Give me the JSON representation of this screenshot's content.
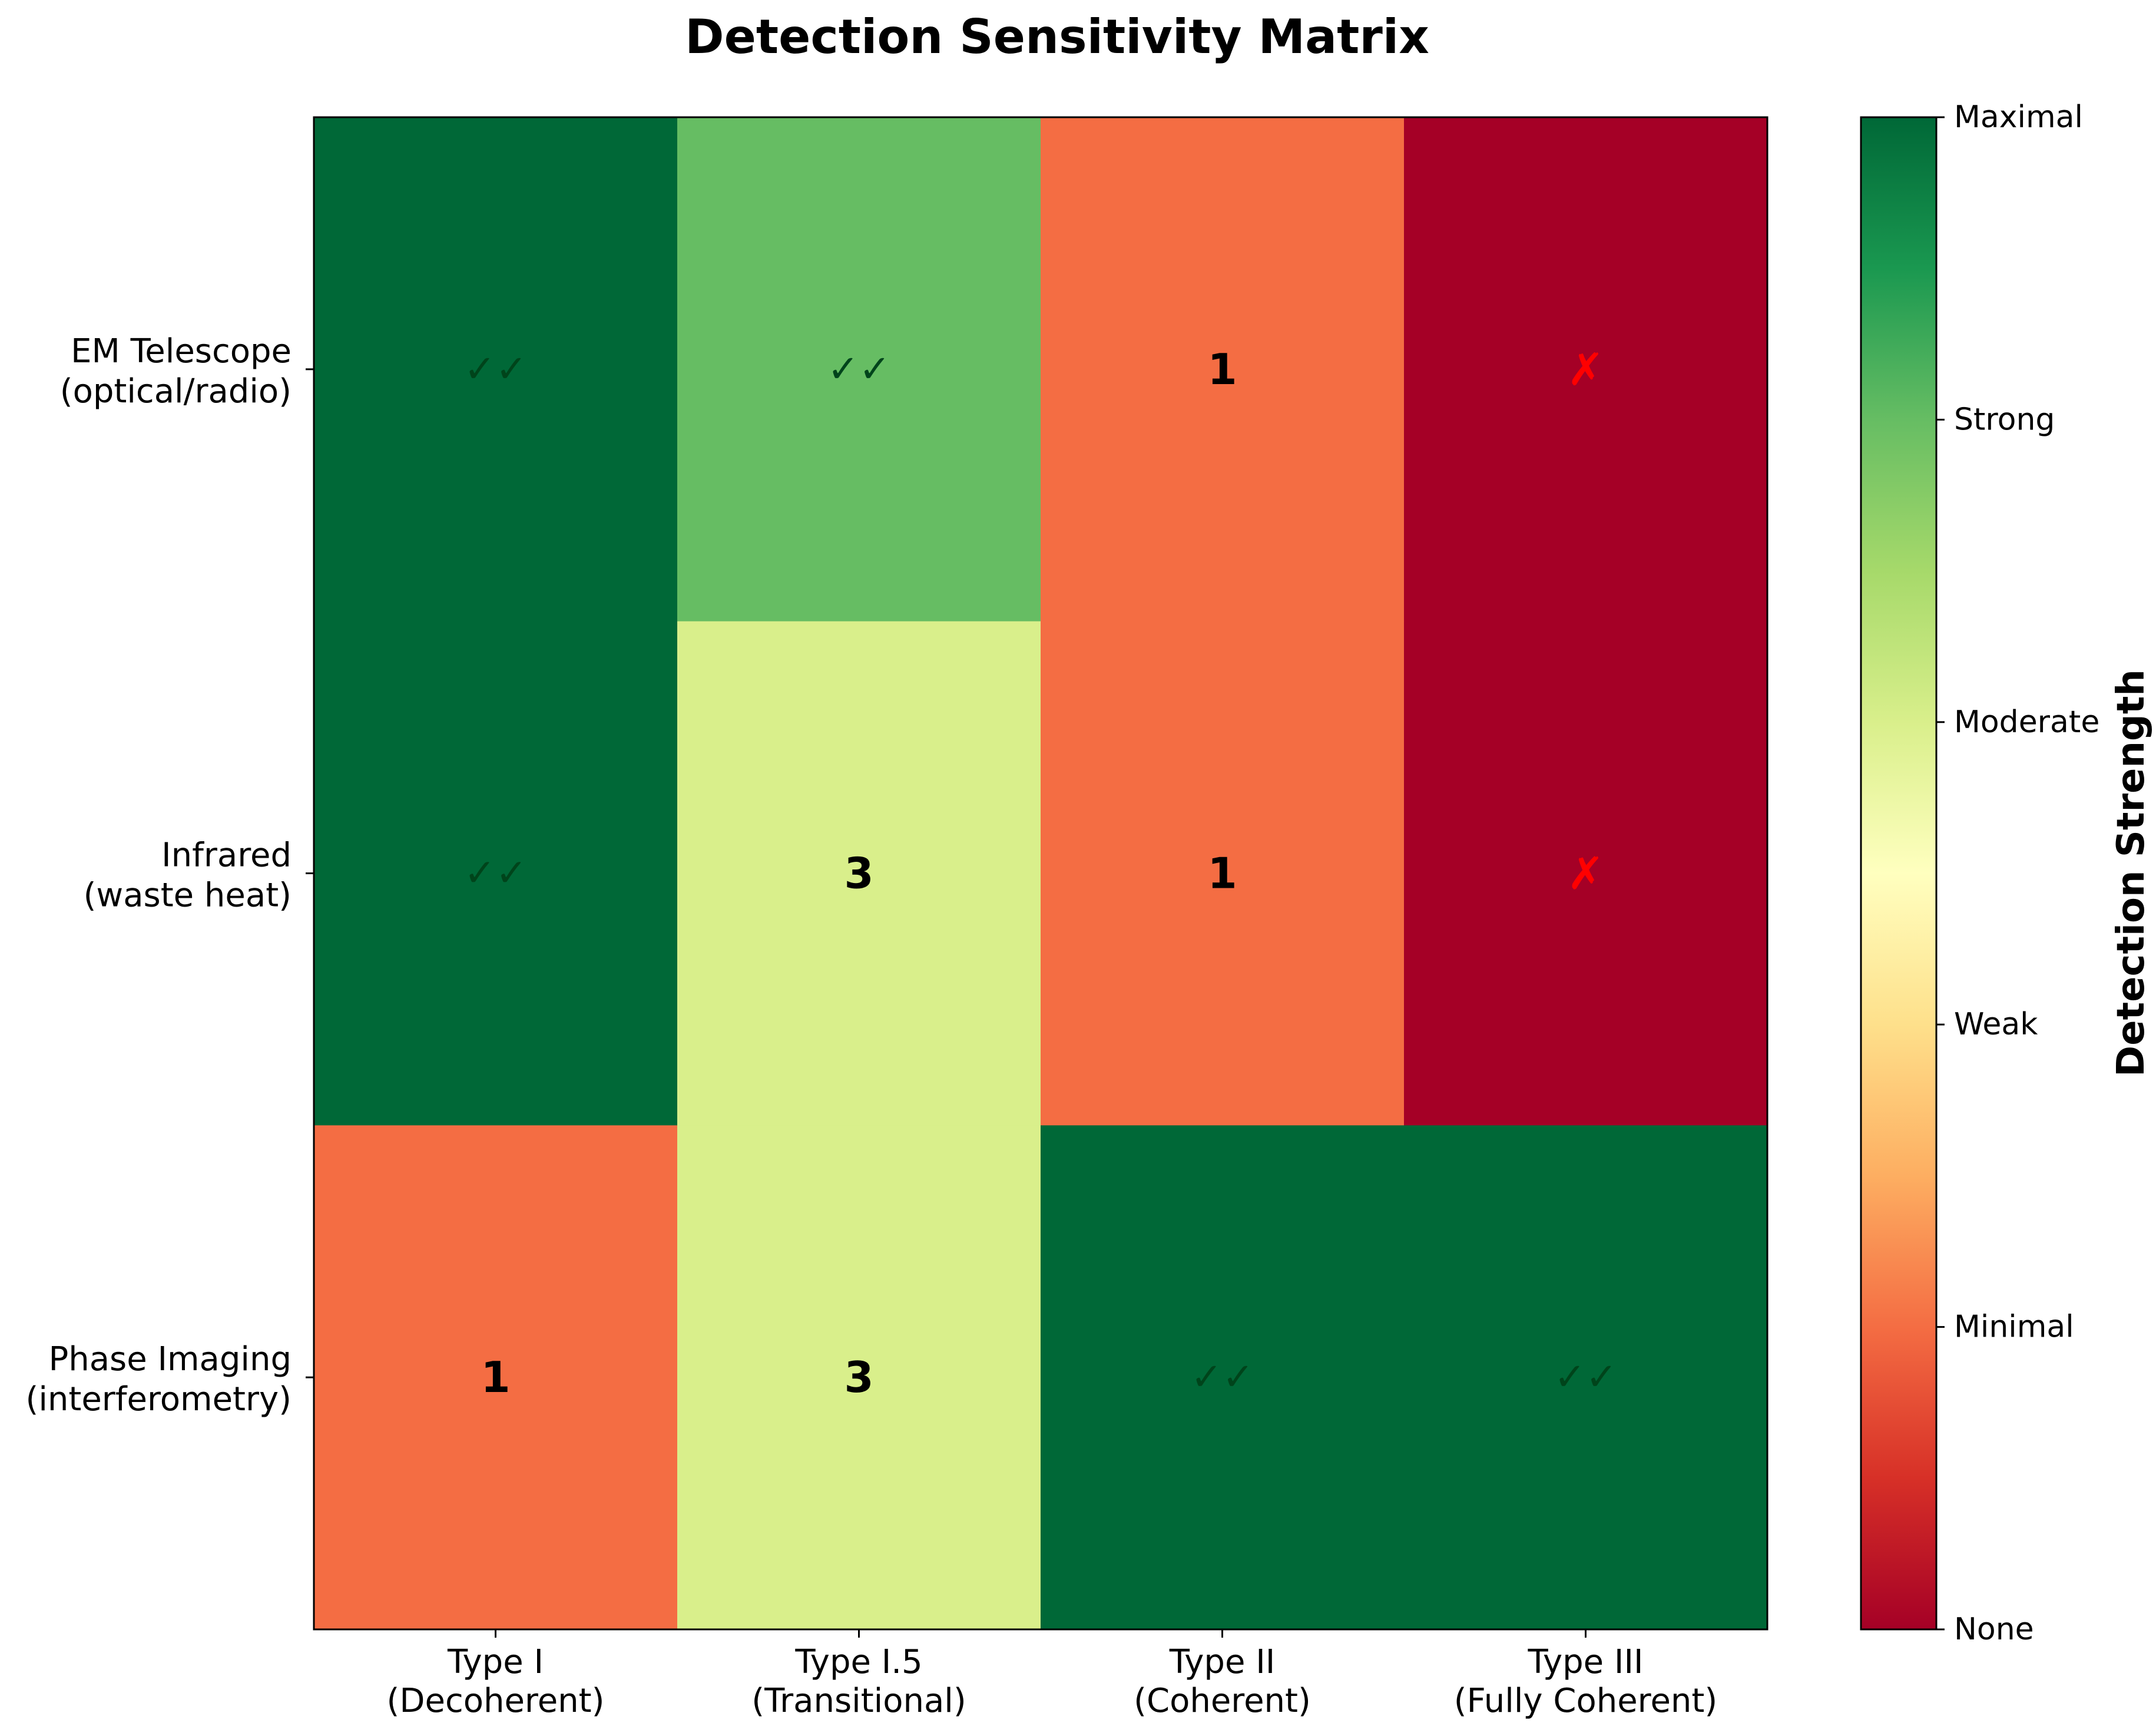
{
  "chart_data": {
    "type": "heatmap",
    "title": "Detection Sensitivity Matrix",
    "xlabel": "",
    "ylabel": "",
    "columns": [
      {
        "line1": "Type I",
        "line2": "(Decoherent)"
      },
      {
        "line1": "Type I.5",
        "line2": "(Transitional)"
      },
      {
        "line1": "Type II",
        "line2": "(Coherent)"
      },
      {
        "line1": "Type III",
        "line2": "(Fully Coherent)"
      }
    ],
    "rows": [
      {
        "line1": "EM Telescope",
        "line2": "(optical/radio)"
      },
      {
        "line1": "Infrared",
        "line2": "(waste heat)"
      },
      {
        "line1": "Phase Imaging",
        "line2": "(interferometry)"
      }
    ],
    "values": [
      [
        5,
        4,
        1,
        0
      ],
      [
        5,
        3,
        1,
        0
      ],
      [
        1,
        3,
        5,
        5
      ]
    ],
    "annotations": [
      [
        "✓✓",
        "✓✓",
        "1",
        "✗"
      ],
      [
        "✓✓",
        "3",
        "1",
        "✗"
      ],
      [
        "1",
        "3",
        "✓✓",
        "✓✓"
      ]
    ],
    "annotation_colors": {
      "check": "#00441b",
      "cross": "#ff0000",
      "number": "#000000"
    },
    "colorbar": {
      "label": "Detection Strength",
      "range": [
        0,
        5
      ],
      "ticks": [
        0,
        1,
        2,
        3,
        4,
        5
      ],
      "tick_labels": [
        "None",
        "Minimal",
        "Weak",
        "Moderate",
        "Strong",
        "Maximal"
      ],
      "colormap": "RdYlGn",
      "stops": [
        "#a50026",
        "#d73027",
        "#f46d43",
        "#fdae61",
        "#fee08b",
        "#ffffbf",
        "#d9ef8b",
        "#a6d96a",
        "#66bd63",
        "#1a9850",
        "#006837"
      ]
    }
  }
}
